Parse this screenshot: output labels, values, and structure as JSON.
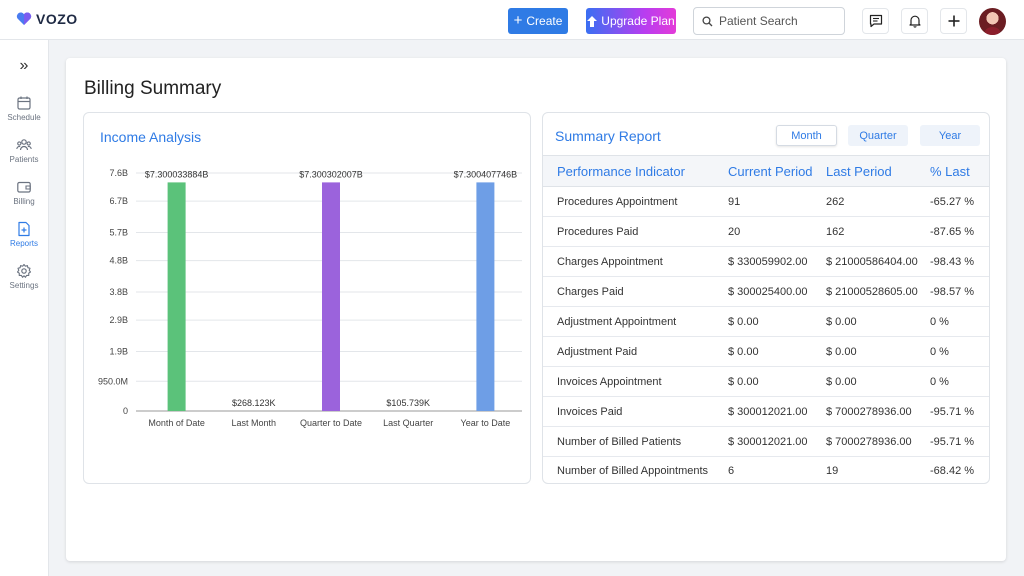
{
  "app": {
    "logo_text": "VOZO"
  },
  "topbar": {
    "create_label": "Create",
    "upgrade_label": "Upgrade Plan",
    "search_placeholder": "Patient Search",
    "icons": [
      "chat-icon",
      "bell-icon",
      "plus-icon"
    ]
  },
  "sidebar": {
    "items": [
      {
        "label": "Schedule",
        "icon": "calendar-icon"
      },
      {
        "label": "Patients",
        "icon": "users-icon"
      },
      {
        "label": "Billing",
        "icon": "wallet-icon"
      },
      {
        "label": "Reports",
        "icon": "report-icon",
        "active": true
      },
      {
        "label": "Settings",
        "icon": "gear-icon"
      }
    ]
  },
  "page": {
    "title": "Billing Summary"
  },
  "income": {
    "title": "Income Analysis"
  },
  "chart_data": {
    "type": "bar",
    "categories": [
      "Month of Date",
      "Last Month",
      "Quarter to Date",
      "Last Quarter",
      "Year to Date"
    ],
    "values": [
      7300033884,
      268123,
      7300302007,
      105739,
      7300407746
    ],
    "data_labels": [
      "$7.300033884B",
      "$268.123K",
      "$7.300302007B",
      "$105.739K",
      "$7.300407746B"
    ],
    "colors": [
      "#5bc27a",
      "#5bc27a",
      "#9b63dc",
      "#9b63dc",
      "#6e9ee6"
    ],
    "y_ticks": [
      0,
      950000000,
      1900000000,
      2900000000,
      3800000000,
      4800000000,
      5700000000,
      6700000000,
      7600000000
    ],
    "y_tick_labels": [
      "0",
      "950.0M",
      "1.9B",
      "2.9B",
      "3.8B",
      "4.8B",
      "5.7B",
      "6.7B",
      "7.6B"
    ],
    "ylim": [
      0,
      7600000000
    ],
    "grid": true,
    "title": "",
    "xlabel": "",
    "ylabel": ""
  },
  "summary": {
    "title": "Summary Report",
    "tabs": [
      "Month",
      "Quarter",
      "Year"
    ],
    "active_tab": "Month",
    "columns": [
      "Performance Indicator",
      "Current Period",
      "Last Period",
      "% Last"
    ],
    "rows": [
      [
        "Procedures Appointment",
        "91",
        "262",
        "-65.27 %"
      ],
      [
        "Procedures Paid",
        "20",
        "162",
        "-87.65 %"
      ],
      [
        "Charges Appointment",
        "$ 330059902.00",
        "$ 21000586404.00",
        "-98.43 %"
      ],
      [
        "Charges Paid",
        "$ 300025400.00",
        "$ 21000528605.00",
        "-98.57 %"
      ],
      [
        "Adjustment Appointment",
        "$ 0.00",
        "$ 0.00",
        "0 %"
      ],
      [
        "Adjustment Paid",
        "$ 0.00",
        "$ 0.00",
        "0 %"
      ],
      [
        "Invoices Appointment",
        "$ 0.00",
        "$ 0.00",
        "0 %"
      ],
      [
        "Invoices Paid",
        "$ 300012021.00",
        "$ 7000278936.00",
        "-95.71 %"
      ],
      [
        "Number of Billed Patients",
        "$ 300012021.00",
        "$ 7000278936.00",
        "-95.71 %"
      ],
      [
        "Number of Billed Appointments",
        "6",
        "19",
        "-68.42 %"
      ]
    ]
  },
  "colors": {
    "accent": "#2f7be5",
    "upgrade_from": "#3a6ff2",
    "upgrade_to": "#e33bd8"
  }
}
